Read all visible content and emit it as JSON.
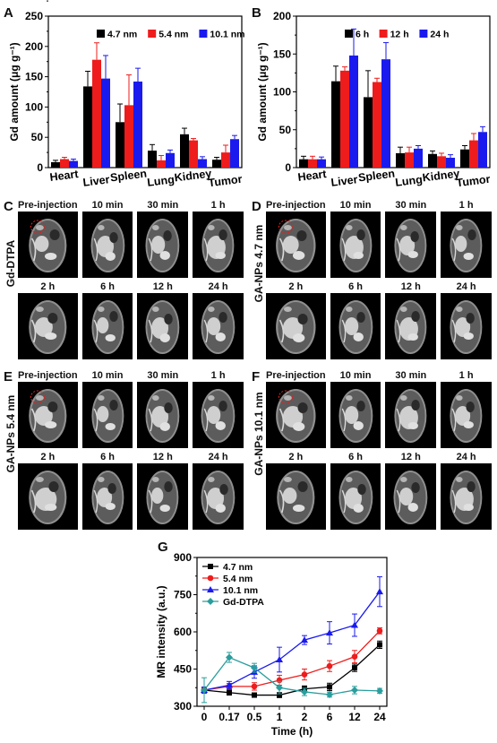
{
  "panels": {
    "A": "A",
    "B": "B",
    "C": "C",
    "D": "D",
    "E": "E",
    "F": "F",
    "G": "G"
  },
  "mri_panels": [
    {
      "letter_key": "C",
      "side_label": "Gd-DTPA",
      "times": [
        "Pre-injection",
        "10 min",
        "30 min",
        "1 h",
        "2 h",
        "6 h",
        "12 h",
        "24 h"
      ]
    },
    {
      "letter_key": "D",
      "side_label": "GA-NPs 4.7 nm",
      "times": [
        "Pre-injection",
        "10 min",
        "30 min",
        "1 h",
        "2 h",
        "6 h",
        "12 h",
        "24 h"
      ]
    },
    {
      "letter_key": "E",
      "side_label": "GA-NPs 5.4 nm",
      "times": [
        "Pre-injection",
        "10 min",
        "30 min",
        "1 h",
        "2 h",
        "6 h",
        "12 h",
        "24 h"
      ]
    },
    {
      "letter_key": "F",
      "side_label": "GA-NPs 10.1 nm",
      "times": [
        "Pre-injection",
        "10 min",
        "30 min",
        "1 h",
        "2 h",
        "6 h",
        "12 h",
        "24 h"
      ]
    }
  ],
  "chart_data": [
    {
      "id": "A",
      "type": "bar",
      "ylabel": "Gd amount (μg g⁻¹)",
      "ylim": [
        0,
        250
      ],
      "yticks": [
        0,
        50,
        100,
        150,
        200,
        250
      ],
      "categories": [
        "Heart",
        "Liver",
        "Spleen",
        "Lung",
        "Kidney",
        "Tumor"
      ],
      "legend_position": "top-right",
      "series": [
        {
          "name": "4.7 nm",
          "color": "#000000",
          "values": [
            9,
            134,
            75,
            28,
            55,
            13
          ],
          "errors": [
            3,
            25,
            30,
            10,
            10,
            4
          ]
        },
        {
          "name": "5.4 nm",
          "color": "#ee1c1c",
          "values": [
            14,
            178,
            103,
            12,
            45,
            25
          ],
          "errors": [
            3,
            28,
            50,
            8,
            3,
            12
          ]
        },
        {
          "name": "10.1 nm",
          "color": "#1a1aee",
          "values": [
            11,
            147,
            142,
            24,
            14,
            47
          ],
          "errors": [
            3,
            38,
            22,
            5,
            4,
            6
          ]
        }
      ]
    },
    {
      "id": "B",
      "type": "bar",
      "ylabel": "Gd amount (μg g⁻¹)",
      "ylim": [
        0,
        200
      ],
      "yticks": [
        0,
        50,
        100,
        150,
        200
      ],
      "categories": [
        "Heart",
        "Liver",
        "Spleen",
        "Lung",
        "Kidney",
        "Tumor"
      ],
      "legend_position": "top-right",
      "series": [
        {
          "name": "6 h",
          "color": "#000000",
          "values": [
            11,
            114,
            93,
            19,
            18,
            24
          ],
          "errors": [
            4,
            20,
            35,
            8,
            4,
            5
          ]
        },
        {
          "name": "12 h",
          "color": "#ee1c1c",
          "values": [
            11,
            128,
            113,
            20,
            15,
            36
          ],
          "errors": [
            4,
            5,
            5,
            7,
            4,
            9
          ]
        },
        {
          "name": "24 h",
          "color": "#1a1aee",
          "values": [
            11,
            148,
            143,
            25,
            13,
            47
          ],
          "errors": [
            3,
            35,
            22,
            4,
            4,
            7
          ]
        }
      ]
    },
    {
      "id": "G",
      "type": "line",
      "xlabel": "Time (h)",
      "ylabel": "MR intensity (a.u.)",
      "x": [
        "0",
        "0.17",
        "0.5",
        "1",
        "2",
        "6",
        "12",
        "24"
      ],
      "ylim": [
        300,
        900
      ],
      "yticks": [
        300,
        450,
        600,
        750,
        900
      ],
      "legend_position": "top-left",
      "series": [
        {
          "name": "4.7 nm",
          "color": "#000000",
          "marker": "square",
          "values": [
            365,
            355,
            345,
            345,
            370,
            378,
            455,
            548
          ],
          "errors": [
            12,
            10,
            8,
            10,
            12,
            15,
            15,
            15
          ]
        },
        {
          "name": "5.4 nm",
          "color": "#ee1c1c",
          "marker": "circle",
          "values": [
            365,
            380,
            380,
            405,
            428,
            462,
            500,
            604
          ],
          "errors": [
            10,
            12,
            15,
            20,
            22,
            22,
            25,
            12
          ]
        },
        {
          "name": "10.1 nm",
          "color": "#1a1aee",
          "marker": "triangle",
          "values": [
            365,
            385,
            438,
            488,
            567,
            596,
            627,
            762
          ],
          "errors": [
            12,
            15,
            25,
            50,
            18,
            45,
            45,
            60
          ]
        },
        {
          "name": "Gd-DTPA",
          "color": "#2a9d9d",
          "marker": "diamond",
          "values": [
            365,
            497,
            455,
            375,
            358,
            347,
            365,
            362
          ],
          "errors": [
            50,
            20,
            18,
            25,
            15,
            10,
            15,
            10
          ]
        }
      ]
    }
  ]
}
